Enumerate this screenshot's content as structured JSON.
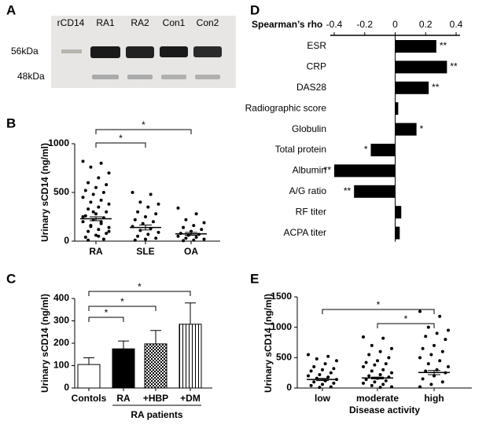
{
  "blot": {
    "panel_label": "A",
    "lanes": [
      "rCD14",
      "RA1",
      "RA2",
      "Con1",
      "Con2"
    ],
    "markers": [
      "56kDa",
      "48kDa"
    ]
  },
  "chart_data": [
    {
      "type": "dotplot",
      "panel_label": "B",
      "ylabel": "Urinary sCD14 (ng/ml)",
      "categories": [
        "RA",
        "SLE",
        "OA"
      ],
      "ylim": [
        0,
        1000
      ],
      "yticks": [
        0,
        500,
        1000
      ],
      "color": "#000000",
      "points": [
        [
          820,
          800,
          760,
          700,
          650,
          600,
          580,
          550,
          520,
          500,
          480,
          450,
          420,
          400,
          380,
          350,
          330,
          300,
          280,
          260,
          240,
          220,
          200,
          180,
          160,
          140,
          120,
          100,
          80,
          60,
          40,
          20,
          300,
          250,
          200,
          150,
          100,
          50,
          10
        ],
        [
          500,
          480,
          400,
          380,
          350,
          300,
          280,
          250,
          220,
          200,
          180,
          150,
          130,
          110,
          90,
          70,
          50,
          30,
          20,
          10
        ],
        [
          340,
          280,
          220,
          190,
          160,
          140,
          120,
          100,
          80,
          70,
          60,
          50,
          40,
          30,
          20,
          10,
          5
        ]
      ],
      "means": [
        230,
        140,
        75
      ],
      "sem": [
        20,
        25,
        15
      ],
      "annotations": [
        "*",
        "*"
      ]
    },
    {
      "type": "bar",
      "panel_label": "C",
      "ylabel": "Urinary sCD14 (ng/ml)",
      "categories": [
        "Contols",
        "RA",
        "+HBP",
        "+DM"
      ],
      "values": [
        105,
        175,
        197,
        285
      ],
      "errors": [
        30,
        35,
        60,
        95
      ],
      "patterns": [
        "white",
        "solid",
        "checker",
        "vertical-lines"
      ],
      "color": "#000000",
      "ylim": [
        0,
        400
      ],
      "yticks": [
        0,
        100,
        200,
        300,
        400
      ],
      "group_label": "RA patients",
      "annotations": [
        "*",
        "*",
        "*"
      ]
    },
    {
      "type": "hbar",
      "panel_label": "D",
      "xlabel": "Spearman’s rho",
      "categories": [
        "ESR",
        "CRP",
        "DAS28",
        "Radiographic score",
        "Globulin",
        "Total protein",
        "Albumin",
        "A/G ratio",
        "RF titer",
        "ACPA titer"
      ],
      "values": [
        0.27,
        0.34,
        0.22,
        0.02,
        0.14,
        -0.16,
        -0.4,
        -0.27,
        0.04,
        0.03
      ],
      "significance": [
        "**",
        "**",
        "**",
        null,
        "*",
        "*",
        "**",
        "**",
        null,
        null
      ],
      "color": "#000000",
      "xlim": [
        -0.4,
        0.4
      ],
      "xticks": [
        -0.4,
        -0.2,
        0,
        0.2,
        0.4
      ]
    },
    {
      "type": "dotplot",
      "panel_label": "E",
      "ylabel": "Urinary sCD14 (ng/ml)",
      "xlabel": "Disease activity",
      "categories": [
        "low",
        "moderate",
        "high"
      ],
      "ylim": [
        0,
        1500
      ],
      "yticks": [
        0,
        500,
        1000,
        1500
      ],
      "color": "#000000",
      "points": [
        [
          550,
          520,
          480,
          450,
          400,
          350,
          320,
          300,
          280,
          250,
          220,
          200,
          180,
          160,
          140,
          120,
          100,
          80,
          60,
          40,
          20,
          10
        ],
        [
          840,
          820,
          700,
          650,
          600,
          550,
          500,
          450,
          420,
          400,
          380,
          350,
          300,
          280,
          250,
          220,
          200,
          180,
          160,
          140,
          120,
          100,
          80,
          60,
          40,
          20,
          10
        ],
        [
          1260,
          1180,
          1000,
          950,
          900,
          850,
          800,
          700,
          650,
          600,
          550,
          500,
          450,
          400,
          350,
          300,
          280,
          250,
          200,
          150,
          100,
          60,
          20
        ]
      ],
      "means": [
        140,
        165,
        255
      ],
      "sem": [
        18,
        15,
        35
      ],
      "annotations": [
        "*",
        "*"
      ]
    }
  ]
}
